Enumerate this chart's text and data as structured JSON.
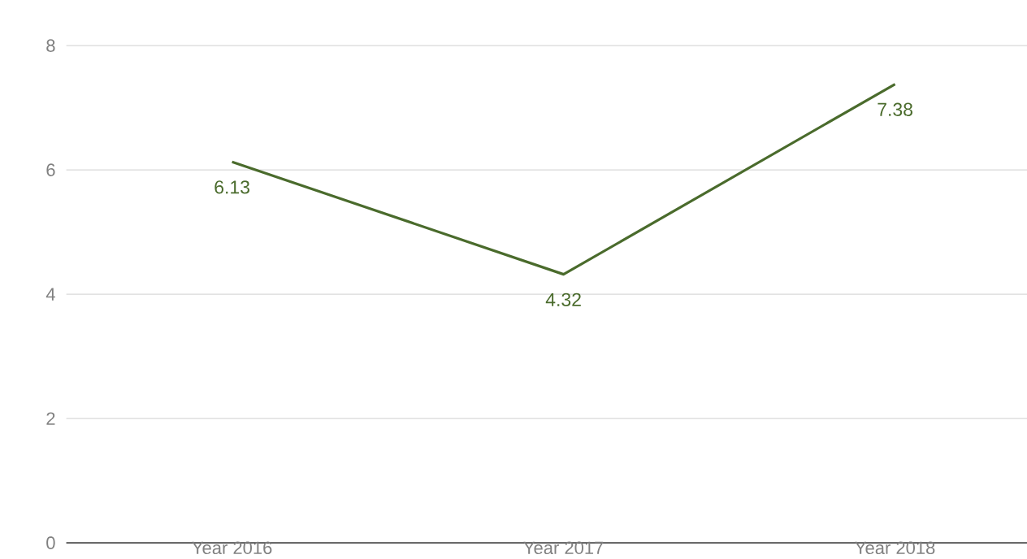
{
  "chart_data": {
    "type": "line",
    "categories": [
      "Year 2016",
      "Year 2017",
      "Year 2018"
    ],
    "values": [
      6.13,
      4.32,
      7.38
    ],
    "color": "#4a6b2c",
    "ylim": [
      0,
      8
    ],
    "yticks": [
      0,
      2,
      4,
      6,
      8
    ],
    "grid": "y",
    "data_labels": true,
    "marker": "none",
    "line_style": "solid"
  }
}
